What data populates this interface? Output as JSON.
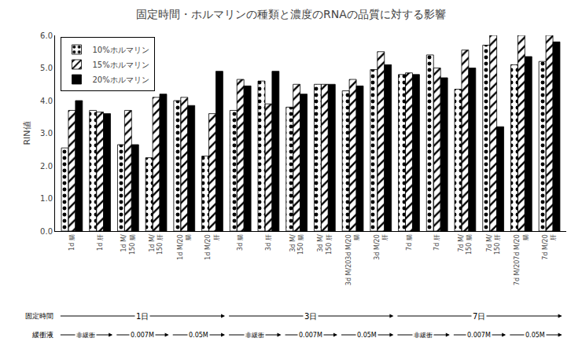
{
  "chart_data": {
    "type": "bar",
    "title": "固定時間・ホルマリンの種類と濃度のRNAの品質に対する影響",
    "y_label": "RIN値",
    "categories": [
      "1d 腸",
      "1d 肝",
      "1d M/\n150 腸",
      "1d M/\n150 肝",
      "1d M/20\n腸",
      "1d M/20\n肝",
      "3d 腸",
      "3d 肝",
      "3d M/\n150 腸",
      "3d M/\n150 肝",
      "3d M/203d M/20\n腸",
      "3d M/20\n肝",
      "7d 腸",
      "7d 肝",
      "7d M/\n150 腸",
      "7d M/\n150 肝",
      "7d M/207d M/20\n腸",
      "7d M/20\n肝"
    ],
    "series": [
      {
        "name": "10%ホルマリン",
        "color": "white",
        "values": [
          2.55,
          3.7,
          2.65,
          2.25,
          4.0,
          2.3,
          3.7,
          4.6,
          3.8,
          4.5,
          4.3,
          4.95,
          4.8,
          5.4,
          4.35,
          5.7,
          5.1,
          5.2
        ]
      },
      {
        "name": "15%ホルマリン",
        "color": "gray",
        "values": [
          3.7,
          3.65,
          3.7,
          4.1,
          4.1,
          3.6,
          4.65,
          3.9,
          4.5,
          4.5,
          4.65,
          5.5,
          4.85,
          5.0,
          5.55,
          6.0,
          6.0,
          6.0
        ]
      },
      {
        "name": "20%ホルマリン",
        "color": "black",
        "values": [
          4.0,
          3.6,
          2.65,
          4.2,
          3.85,
          4.9,
          4.45,
          4.9,
          4.2,
          4.5,
          4.45,
          5.1,
          4.8,
          4.7,
          5.0,
          3.2,
          5.35,
          5.8
        ]
      }
    ],
    "ylim": [
      0.0,
      6.0
    ],
    "yticks": [
      {
        "value": 0,
        "label": "0.0"
      },
      {
        "value": 1,
        "label": "1.0"
      },
      {
        "value": 2,
        "label": "2.0"
      },
      {
        "value": 3,
        "label": "3.0"
      },
      {
        "value": 4,
        "label": "4.0"
      },
      {
        "value": 5,
        "label": "5.0"
      },
      {
        "value": 6,
        "label": "6.0"
      }
    ],
    "grid": false,
    "legend": "upper left",
    "annotations": [
      {
        "text": "固定時間",
        "items": [
          "1日",
          "3日",
          "7日"
        ]
      },
      {
        "text": "緩衝液",
        "items": [
          "非緩衝",
          "0.007M",
          "0.05M",
          "非緩衝",
          "0.007M",
          "0.05M",
          "非緩衝",
          "0.007M",
          "0.05M"
        ]
      }
    ]
  }
}
